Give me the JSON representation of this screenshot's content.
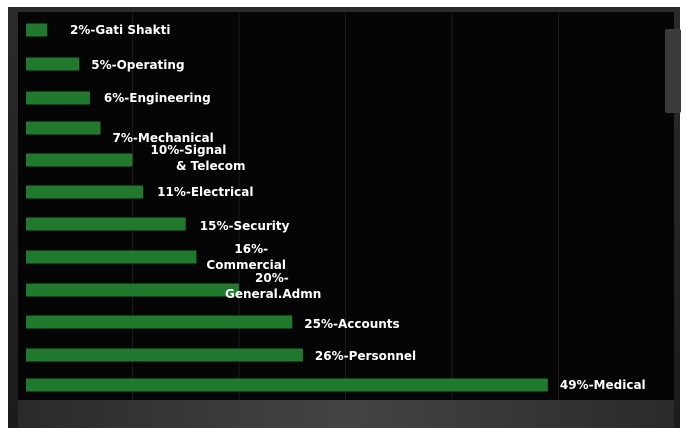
{
  "chart_data": {
    "type": "bar",
    "orientation": "horizontal",
    "categories": [
      "Gati Shakti",
      "Operating",
      "Engineering",
      "Mechanical",
      "Signal & Telecom",
      "Electrical",
      "Security",
      "Commercial",
      "General.Admn",
      "Accounts",
      "Personnel",
      "Medical"
    ],
    "values": [
      2,
      5,
      6,
      7,
      10,
      11,
      15,
      16,
      20,
      25,
      26,
      49
    ],
    "labels": [
      "2%-Gati Shakti",
      "5%-Operating",
      "6%-Engineering",
      "7%-Mechanical",
      "10%-Signal & Telecom",
      "11%-Electrical",
      "15%-Security",
      "16%-Commercial",
      "20%-General.Admn",
      "25%-Accounts",
      "26%-Personnel",
      "49%-Medical"
    ],
    "unit": "%",
    "xlim": [
      0,
      50
    ],
    "grid": true,
    "legend": "none",
    "bar_color": "#1f7a2e",
    "label_color": "#ffffff",
    "background_color": "#050505",
    "title": "",
    "xlabel": "",
    "ylabel": ""
  }
}
